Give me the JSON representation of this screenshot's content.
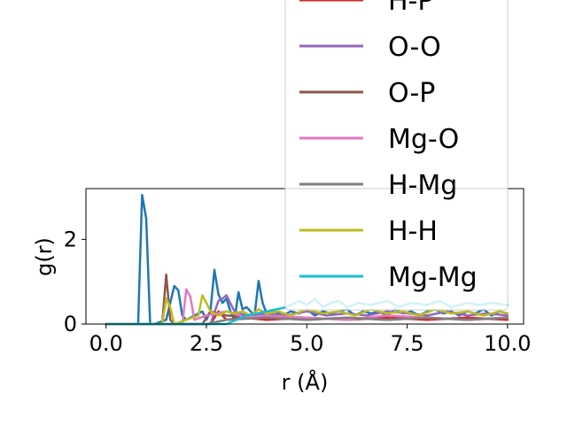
{
  "chart_data": {
    "type": "line",
    "xlabel": "r (Å)",
    "ylabel": "g(r)",
    "xlim": [
      -0.5,
      10.4
    ],
    "ylim": [
      0,
      3.2
    ],
    "xticks": [
      "0.0",
      "2.5",
      "5.0",
      "7.5",
      "10.0"
    ],
    "xtick_values": [
      0,
      2.5,
      5,
      7.5,
      10
    ],
    "yticks": [
      "0",
      "2"
    ],
    "ytick_values": [
      0,
      2
    ],
    "grid": false,
    "legend_placement": "top-right",
    "series": [
      {
        "name": "",
        "color": "#1f77b4",
        "x": [
          0,
          0.8,
          0.9,
          1.0,
          1.1,
          1.2,
          1.5,
          1.7,
          1.8,
          1.9,
          2.0,
          2.4,
          2.5,
          2.6,
          2.7,
          2.8,
          2.9,
          3.0,
          3.1,
          3.2,
          3.3,
          3.4,
          3.5,
          3.6,
          3.7,
          3.8,
          3.9,
          4.0,
          4.2,
          4.4,
          4.6,
          4.8,
          5.0,
          5.2,
          5.4,
          5.6,
          5.8,
          6.0,
          6.2,
          6.4,
          6.6,
          6.8,
          7.0,
          7.2,
          7.4,
          7.6,
          7.8,
          8.0,
          8.2,
          8.4,
          8.6,
          8.8,
          9.0,
          9.2,
          9.4,
          9.6,
          9.8,
          10.0
        ],
        "y": [
          0,
          0,
          3.05,
          2.5,
          0,
          0,
          0.1,
          0.9,
          0.8,
          0.2,
          0.1,
          0.3,
          0.1,
          0.3,
          1.28,
          0.7,
          0.5,
          0.6,
          0.3,
          0.1,
          0.75,
          0.35,
          0.4,
          0.3,
          0.2,
          1.02,
          0.5,
          0.25,
          0.3,
          0.2,
          0.3,
          0.25,
          0.35,
          0.2,
          0.3,
          0.25,
          0.3,
          0.35,
          0.2,
          0.3,
          0.25,
          0.3,
          0.2,
          0.35,
          0.25,
          0.3,
          0.2,
          0.3,
          0.35,
          0.25,
          0.3,
          0.2,
          0.3,
          0.25,
          0.35,
          0.2,
          0.3,
          0.25
        ]
      },
      {
        "name": "H-P",
        "color": "#d62728",
        "x": [
          0,
          2.6,
          2.8,
          3.0,
          3.4,
          4.0,
          5.0,
          6.0,
          7.0,
          8.0,
          9.0,
          10.0
        ],
        "y": [
          0,
          0,
          0.3,
          0.1,
          0.15,
          0.1,
          0.15,
          0.1,
          0.15,
          0.1,
          0.15,
          0.1
        ]
      },
      {
        "name": "O-O",
        "color": "#9467bd",
        "x": [
          0,
          2.6,
          2.8,
          2.9,
          3.0,
          3.2,
          3.5,
          4.0,
          4.5,
          5.0,
          5.5,
          6.0,
          6.5,
          7.0,
          7.5,
          8.0,
          8.5,
          9.0,
          9.5,
          10.0
        ],
        "y": [
          0,
          0,
          0.55,
          0.6,
          0.68,
          0.3,
          0.2,
          0.25,
          0.2,
          0.3,
          0.2,
          0.25,
          0.2,
          0.3,
          0.25,
          0.2,
          0.3,
          0.2,
          0.25,
          0.2
        ]
      },
      {
        "name": "O-P",
        "color": "#8c564b",
        "x": [
          0,
          1.4,
          1.5,
          1.6,
          1.7,
          2.4,
          2.6,
          3.0,
          4.0,
          5.0,
          6.0,
          7.0,
          8.0,
          9.0,
          10.0
        ],
        "y": [
          0,
          0,
          1.17,
          0.1,
          0,
          0,
          0.3,
          0.2,
          0.15,
          0.1,
          0.15,
          0.1,
          0.15,
          0.1,
          0.15
        ]
      },
      {
        "name": "Mg-O",
        "color": "#e377c2",
        "x": [
          0,
          1.9,
          2.0,
          2.1,
          2.2,
          2.5,
          3.0,
          3.5,
          4.0,
          5.0,
          6.0,
          7.0,
          8.0,
          9.0,
          10.0
        ],
        "y": [
          0,
          0,
          0.82,
          0.65,
          0.1,
          0.2,
          0.3,
          0.15,
          0.2,
          0.15,
          0.1,
          0.2,
          0.15,
          0.1,
          0.15
        ]
      },
      {
        "name": "H-Mg",
        "color": "#7f7f7f",
        "x": [
          0,
          2.5,
          3.0,
          4.0,
          5.0,
          6.0,
          7.0,
          8.0,
          9.0,
          10.0
        ],
        "y": [
          0,
          0,
          0.1,
          0.15,
          0.1,
          0.15,
          0.1,
          0.15,
          0.1,
          0.15
        ]
      },
      {
        "name": "H-H",
        "color": "#bcbd22",
        "x": [
          0,
          1.4,
          1.5,
          1.6,
          1.7,
          2.0,
          2.3,
          2.4,
          2.5,
          2.6,
          2.8,
          3.0,
          3.2,
          3.4,
          3.6,
          3.8,
          4.0,
          4.3,
          4.6,
          5.0,
          5.4,
          5.8,
          6.2,
          6.6,
          7.0,
          7.4,
          7.8,
          8.2,
          8.6,
          9.0,
          9.4,
          9.8,
          10.0
        ],
        "y": [
          0,
          0,
          0.6,
          0.4,
          0,
          0.1,
          0.2,
          0.68,
          0.5,
          0.3,
          0.2,
          0.3,
          0.25,
          0.3,
          0.2,
          0.35,
          0.25,
          0.3,
          0.2,
          0.35,
          0.25,
          0.3,
          0.2,
          0.35,
          0.25,
          0.3,
          0.2,
          0.35,
          0.25,
          0.3,
          0.2,
          0.3,
          0.25
        ]
      },
      {
        "name": "Mg-Mg",
        "color": "#17becf",
        "x": [
          0,
          3.0,
          3.5,
          4.0,
          4.5,
          4.8,
          5.0,
          5.2,
          5.4,
          5.6,
          5.8,
          6.0,
          6.3,
          6.6,
          7.0,
          7.3,
          7.6,
          8.0,
          8.3,
          8.6,
          9.0,
          9.3,
          9.6,
          10.0
        ],
        "y": [
          0,
          0,
          0.2,
          0.3,
          0.4,
          0.55,
          0.45,
          0.6,
          0.4,
          0.5,
          0.55,
          0.4,
          0.5,
          0.45,
          0.55,
          0.4,
          0.5,
          0.45,
          0.55,
          0.4,
          0.5,
          0.45,
          0.5,
          0.45
        ]
      }
    ]
  },
  "legend": {
    "visible_entries": [
      {
        "label": "H-P",
        "color": "#d62728"
      },
      {
        "label": "O-O",
        "color": "#9467bd"
      },
      {
        "label": "O-P",
        "color": "#8c564b"
      },
      {
        "label": "Mg-O",
        "color": "#e377c2"
      },
      {
        "label": "H-Mg",
        "color": "#7f7f7f"
      },
      {
        "label": "H-H",
        "color": "#bcbd22"
      },
      {
        "label": "Mg-Mg",
        "color": "#17becf"
      }
    ]
  }
}
